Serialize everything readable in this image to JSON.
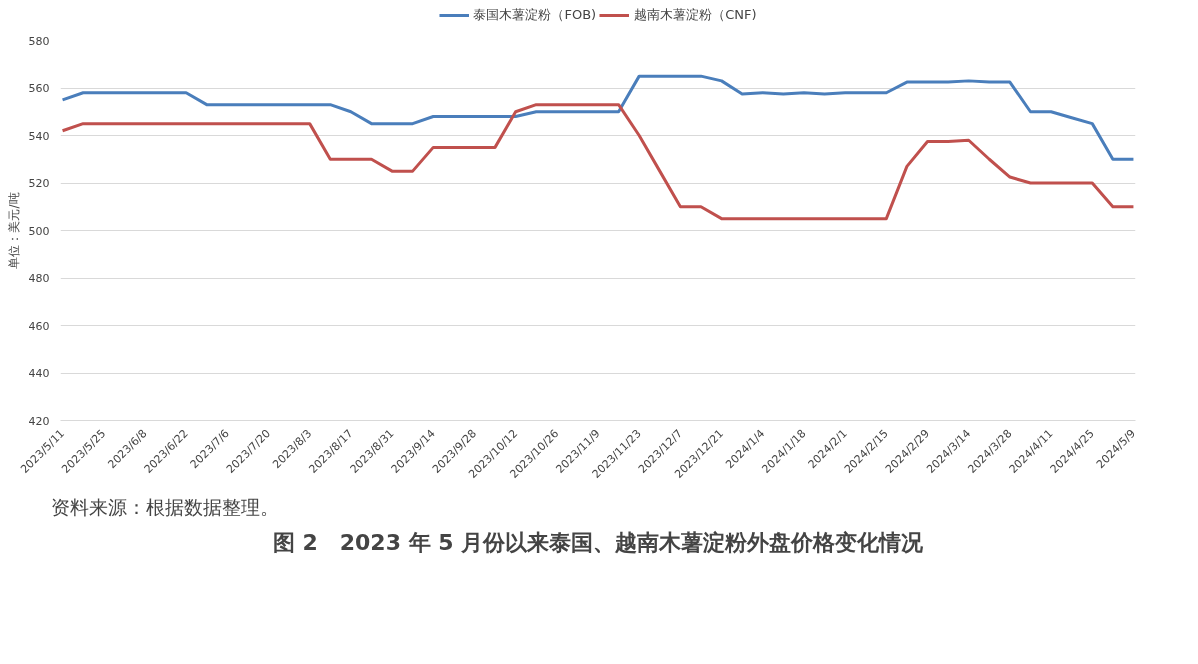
{
  "chart_data": {
    "type": "line",
    "title": "图 2　2023 年 5 月份以来泰国、越南木薯淀粉外盘价格变化情况",
    "ylabel": "单位：美元/吨",
    "annotations": [
      "资料来源：根据数据整理。"
    ],
    "categories": [
      "2023/5/11",
      null,
      "2023/5/25",
      null,
      "2023/6/8",
      null,
      "2023/6/22",
      null,
      "2023/7/6",
      null,
      "2023/7/20",
      null,
      "2023/8/3",
      null,
      "2023/8/17",
      null,
      "2023/8/31",
      null,
      "2023/9/14",
      null,
      "2023/9/28",
      null,
      "2023/10/12",
      null,
      "2023/10/26",
      null,
      "2023/11/9",
      null,
      "2023/11/23",
      null,
      "2023/12/7",
      null,
      "2023/12/21",
      null,
      "2024/1/4",
      null,
      "2024/1/18",
      null,
      "2024/2/1",
      null,
      "2024/2/15",
      null,
      "2024/2/29",
      null,
      "2024/3/14",
      null,
      "2024/3/28",
      null,
      "2024/4/11",
      null,
      "2024/4/25",
      null,
      "2024/5/9"
    ],
    "series": [
      {
        "name": "泰国木薯淀粉（FOB)",
        "color": "#4a7ebb",
        "values": [
          555,
          558,
          558,
          558,
          558,
          558,
          558,
          553,
          553,
          553,
          553,
          553,
          553,
          553,
          550,
          545,
          545,
          545,
          548,
          548,
          548,
          548,
          548,
          550,
          550,
          550,
          550,
          550,
          565,
          565,
          565,
          565,
          563,
          557.5,
          558,
          557.5,
          558,
          557.5,
          558,
          558,
          558,
          562.5,
          562.5,
          562.5,
          563,
          562.5,
          562.5,
          550,
          550,
          547.5,
          545,
          530,
          530
        ]
      },
      {
        "name": "越南木薯淀粉（CNF)",
        "color": "#c0504d",
        "values": [
          542,
          545,
          545,
          545,
          545,
          545,
          545,
          545,
          545,
          545,
          545,
          545,
          545,
          530,
          530,
          530,
          525,
          525,
          535,
          535,
          535,
          535,
          550,
          553,
          553,
          553,
          553,
          553,
          540,
          525,
          510,
          510,
          505,
          505,
          505,
          505,
          505,
          505,
          505,
          505,
          505,
          527,
          537.5,
          537.5,
          538,
          530,
          522.5,
          520,
          520,
          520,
          520,
          510,
          510
        ]
      }
    ],
    "ylim": [
      420,
      580
    ],
    "yticks": [
      420,
      440,
      460,
      480,
      500,
      520,
      540,
      560,
      580
    ],
    "grid": "y",
    "legend": "top"
  }
}
